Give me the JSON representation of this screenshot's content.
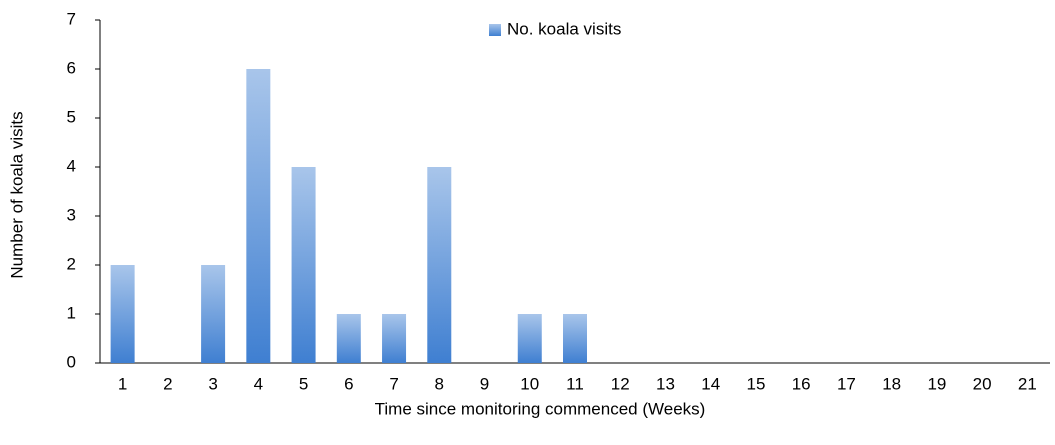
{
  "chart_data": {
    "type": "bar",
    "categories": [
      "1",
      "2",
      "3",
      "4",
      "5",
      "6",
      "7",
      "8",
      "9",
      "10",
      "11",
      "12",
      "13",
      "14",
      "15",
      "16",
      "17",
      "18",
      "19",
      "20",
      "21"
    ],
    "series": [
      {
        "name": "No. koala visits",
        "color": "#3f7fd1",
        "values": [
          2,
          0,
          2,
          6,
          4,
          1,
          1,
          4,
          0,
          1,
          1,
          0,
          0,
          0,
          0,
          0,
          0,
          0,
          0,
          0,
          0
        ]
      }
    ],
    "ylim": [
      0,
      7
    ],
    "yticks": [
      0,
      1,
      2,
      3,
      4,
      5,
      6,
      7
    ],
    "grid": false,
    "xlabel": "Time since monitoring commenced (Weeks)",
    "ylabel": "Number of koala visits",
    "legend": "top"
  }
}
